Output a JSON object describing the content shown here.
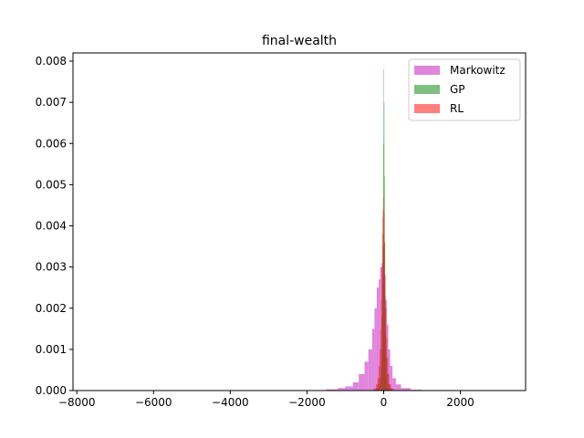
{
  "chart_data": {
    "type": "bar",
    "title": "final-wealth",
    "xlabel": "",
    "ylabel": "",
    "xlim": [
      -8100,
      3700
    ],
    "ylim": [
      0,
      0.0082
    ],
    "xticks": [
      -8000,
      -6000,
      -4000,
      -2000,
      0,
      2000
    ],
    "xtick_labels": [
      "−8000",
      "−6000",
      "−4000",
      "−2000",
      "0",
      "2000"
    ],
    "yticks": [
      0.0,
      0.001,
      0.002,
      0.003,
      0.004,
      0.005,
      0.006,
      0.007,
      0.008
    ],
    "ytick_labels": [
      "0.000",
      "0.001",
      "0.002",
      "0.003",
      "0.004",
      "0.005",
      "0.006",
      "0.007",
      "0.008"
    ],
    "grid": false,
    "legend_position": "top-right",
    "series": [
      {
        "name": "Markowitz",
        "color": "#da70d6",
        "opacity": 0.85,
        "histogram": "density",
        "bins": [
          [
            -1500,
            -1200,
            3e-05
          ],
          [
            -1200,
            -1000,
            6e-05
          ],
          [
            -1000,
            -800,
            0.0001
          ],
          [
            -800,
            -650,
            0.0002
          ],
          [
            -650,
            -500,
            0.0004
          ],
          [
            -500,
            -400,
            0.0007
          ],
          [
            -400,
            -300,
            0.001
          ],
          [
            -300,
            -240,
            0.0015
          ],
          [
            -240,
            -180,
            0.002
          ],
          [
            -180,
            -130,
            0.0025
          ],
          [
            -130,
            -90,
            0.0027
          ],
          [
            -90,
            -50,
            0.003
          ],
          [
            -50,
            -20,
            0.0031
          ],
          [
            -20,
            10,
            0.0035
          ],
          [
            10,
            40,
            0.0028
          ],
          [
            40,
            80,
            0.0022
          ],
          [
            80,
            120,
            0.0016
          ],
          [
            120,
            170,
            0.001
          ],
          [
            170,
            230,
            0.0006
          ],
          [
            230,
            320,
            0.0003
          ],
          [
            320,
            450,
            0.00015
          ],
          [
            450,
            700,
            6e-05
          ],
          [
            700,
            1000,
            2e-05
          ]
        ]
      },
      {
        "name": "GP",
        "color": "#008000",
        "opacity": 0.5,
        "histogram": "density",
        "bins": [
          [
            -200,
            -150,
            5e-05
          ],
          [
            -150,
            -110,
            0.00015
          ],
          [
            -110,
            -80,
            0.0003
          ],
          [
            -80,
            -60,
            0.0006
          ],
          [
            -60,
            -45,
            0.001
          ],
          [
            -45,
            -35,
            0.0018
          ],
          [
            -35,
            -25,
            0.0028
          ],
          [
            -25,
            -15,
            0.0042
          ],
          [
            -15,
            -5,
            0.006
          ],
          [
            -5,
            5,
            0.0078
          ],
          [
            5,
            15,
            0.007
          ],
          [
            15,
            25,
            0.0052
          ],
          [
            25,
            35,
            0.0036
          ],
          [
            35,
            45,
            0.0023
          ],
          [
            45,
            60,
            0.0014
          ],
          [
            60,
            80,
            0.0008
          ],
          [
            80,
            110,
            0.0004
          ],
          [
            110,
            150,
            0.00015
          ],
          [
            150,
            200,
            5e-05
          ]
        ]
      },
      {
        "name": "RL",
        "color": "#ff0000",
        "opacity": 0.5,
        "histogram": "density",
        "bins": [
          [
            -260,
            -200,
            5e-05
          ],
          [
            -200,
            -160,
            0.00015
          ],
          [
            -160,
            -130,
            0.0003
          ],
          [
            -130,
            -105,
            0.0006
          ],
          [
            -105,
            -85,
            0.001
          ],
          [
            -85,
            -70,
            0.0015
          ],
          [
            -70,
            -55,
            0.0022
          ],
          [
            -55,
            -40,
            0.003
          ],
          [
            -40,
            -25,
            0.0038
          ],
          [
            -25,
            -10,
            0.0044
          ],
          [
            -10,
            5,
            0.0047
          ],
          [
            5,
            20,
            0.0043
          ],
          [
            20,
            35,
            0.0036
          ],
          [
            35,
            50,
            0.0028
          ],
          [
            50,
            70,
            0.002
          ],
          [
            70,
            90,
            0.0013
          ],
          [
            90,
            115,
            0.0008
          ],
          [
            115,
            145,
            0.0004
          ],
          [
            145,
            190,
            0.00015
          ],
          [
            190,
            260,
            5e-05
          ]
        ]
      }
    ]
  }
}
